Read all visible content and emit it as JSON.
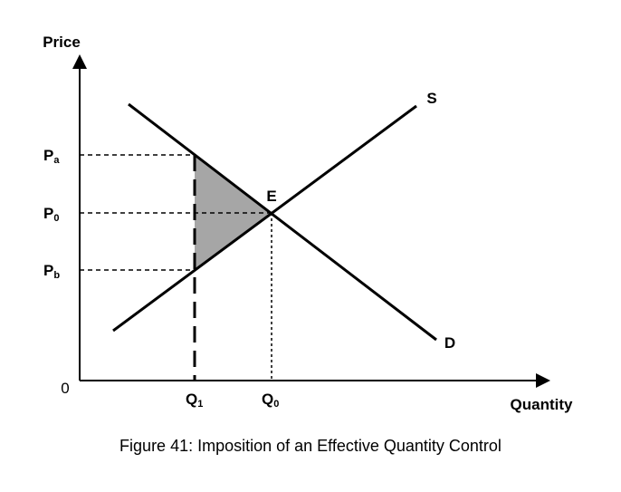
{
  "axes": {
    "y_label": "Price",
    "x_label": "Quantity",
    "origin": "0"
  },
  "curves": {
    "supply": "S",
    "demand": "D",
    "equilibrium": "E"
  },
  "price_labels": [
    {
      "main": "P",
      "sub": "a"
    },
    {
      "main": "P",
      "sub": "0"
    },
    {
      "main": "P",
      "sub": "b"
    }
  ],
  "quantity_labels": [
    {
      "main": "Q",
      "sub": "1"
    },
    {
      "main": "Q",
      "sub": "0"
    }
  ],
  "caption": "Figure 41: Imposition of an Effective Quantity Control"
}
